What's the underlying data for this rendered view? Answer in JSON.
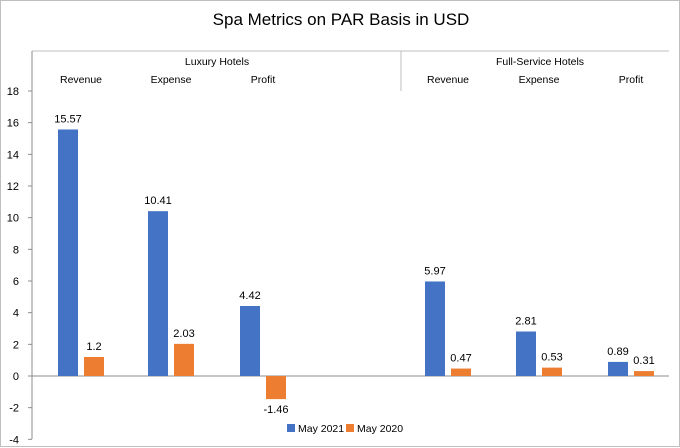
{
  "chart_data": {
    "type": "bar",
    "title": "Spa Metrics on PAR Basis in USD",
    "groups": [
      {
        "label": "Luxury Hotels",
        "categories": [
          "Revenue",
          "Expense",
          "Profit"
        ]
      },
      {
        "label": "Full-Service Hotels",
        "categories": [
          "Revenue",
          "Expense",
          "Profit"
        ]
      }
    ],
    "series": [
      {
        "name": "May 2021",
        "color": "#4472c4",
        "values": [
          15.57,
          10.41,
          4.42,
          5.97,
          2.81,
          0.89
        ]
      },
      {
        "name": "May 2020",
        "color": "#ed7d31",
        "values": [
          1.2,
          2.03,
          -1.46,
          0.47,
          0.53,
          0.31
        ]
      }
    ],
    "ylim": [
      -4,
      18
    ],
    "yticks": [
      -4,
      -2,
      0,
      2,
      4,
      6,
      8,
      10,
      12,
      14,
      16,
      18
    ],
    "legend_position": "bottom",
    "grid": false
  }
}
